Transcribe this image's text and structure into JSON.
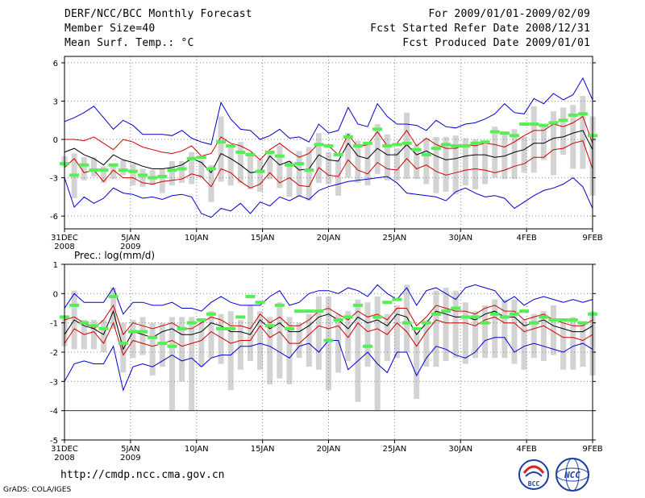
{
  "header": {
    "title": "DERF/NCC/BCC Monthly Forecast",
    "member_size": "Member Size=40",
    "variable": "Mean Surf. Temp.: °C",
    "period": "For 2009/01/01-2009/02/09",
    "fcst_started": "Fcst Started Refer Date 2008/12/31",
    "fcst_produced": "Fcst Produced Date 2009/01/01"
  },
  "footer": {
    "url": "http://cmdp.ncc.cma.gov.cn",
    "credit": "GrADS: COLA/IGES",
    "logo_bcc_text": "BCC",
    "logo_ncc_text": "NCC"
  },
  "colors": {
    "envelope_max_min": "#0000cc",
    "percentile_band": "#cc0000",
    "ensemble_mean": "#000000",
    "observed_marker": "#55ee55",
    "spread_box": "#d3d3d3",
    "grid": "#888888"
  },
  "x_tick_labels": [
    "31DEC\n2008",
    "5JAN\n2009",
    "10JAN",
    "15JAN",
    "20JAN",
    "25JAN",
    "30JAN",
    "4FEB",
    "9FEB"
  ],
  "chart_data": [
    {
      "type": "line",
      "title": "Mean Surf. Temp.: °C",
      "ylim": [
        -7,
        6.5
      ],
      "yticks": [
        -6,
        -3,
        0,
        3,
        6
      ],
      "grid": true,
      "day_range": [
        0,
        40
      ],
      "series": [
        {
          "name": "max",
          "values": [
            1.4,
            1.7,
            2.1,
            2.6,
            1.7,
            0.8,
            1.5,
            1.1,
            0.4,
            0.4,
            0.4,
            0.3,
            0.7,
            0.1,
            -0.2,
            -0.4,
            2.9,
            1.6,
            0.8,
            0.7,
            0.0,
            0.3,
            0.8,
            0.1,
            0.2,
            -0.2,
            1.2,
            0.5,
            0.7,
            2.5,
            1.2,
            1.0,
            2.8,
            1.8,
            1.2,
            1.2,
            1.1,
            0.7,
            1.5,
            1.0,
            0.9,
            1.2,
            1.3,
            1.6,
            2.0,
            2.8,
            2.1,
            2.0,
            3.2,
            2.8,
            3.6,
            3.1,
            3.5,
            4.8,
            3.1
          ]
        },
        {
          "name": "p75",
          "values": [
            0.0,
            0.0,
            -0.1,
            0.2,
            -0.3,
            -0.8,
            0.0,
            -0.2,
            -0.6,
            -0.8,
            -1.0,
            -1.1,
            -0.9,
            -0.5,
            -1.3,
            -1.1,
            0.2,
            -0.3,
            -0.5,
            -0.9,
            -1.6,
            -0.8,
            -0.3,
            -0.9,
            -1.4,
            -1.1,
            -0.3,
            -0.5,
            -1.2,
            0.4,
            -0.6,
            -0.4,
            0.6,
            -0.5,
            -0.3,
            0.7,
            -0.5,
            0.1,
            -0.4,
            -0.7,
            -0.7,
            -0.4,
            -0.5,
            -0.3,
            -0.4,
            -0.6,
            -0.2,
            0.3,
            0.7,
            0.7,
            1.2,
            1.0,
            1.3,
            1.8,
            -0.3
          ]
        },
        {
          "name": "mean",
          "values": [
            -1.0,
            -0.7,
            -1.2,
            -1.5,
            -2.0,
            -1.2,
            -1.6,
            -1.8,
            -2.1,
            -2.3,
            -2.3,
            -2.2,
            -2.0,
            -1.5,
            -1.8,
            -2.6,
            -1.1,
            -1.5,
            -2.0,
            -2.6,
            -2.5,
            -1.3,
            -2.0,
            -1.7,
            -2.4,
            -2.3,
            -1.2,
            -1.6,
            -1.7,
            -0.3,
            -1.3,
            -1.5,
            -0.7,
            -1.2,
            -1.2,
            -0.4,
            -1.2,
            -0.9,
            -1.3,
            -1.6,
            -1.5,
            -1.3,
            -1.2,
            -1.2,
            -1.4,
            -1.3,
            -1.0,
            -0.8,
            -0.3,
            -0.3,
            0.1,
            0.2,
            0.5,
            0.7,
            -0.8
          ]
        },
        {
          "name": "p25",
          "values": [
            -2.2,
            -1.5,
            -2.6,
            -2.4,
            -3.3,
            -2.4,
            -3.0,
            -3.0,
            -3.4,
            -3.5,
            -3.3,
            -3.2,
            -3.1,
            -2.7,
            -2.9,
            -3.7,
            -2.3,
            -2.6,
            -3.3,
            -3.8,
            -3.5,
            -2.6,
            -3.4,
            -3.0,
            -3.6,
            -3.7,
            -2.2,
            -2.8,
            -2.9,
            -1.6,
            -2.4,
            -2.7,
            -1.8,
            -2.3,
            -2.4,
            -1.5,
            -2.3,
            -2.0,
            -2.5,
            -2.8,
            -2.6,
            -2.4,
            -2.3,
            -2.4,
            -2.6,
            -2.4,
            -2.1,
            -1.9,
            -1.4,
            -1.4,
            -0.8,
            -0.7,
            -0.3,
            -0.1,
            -2.3
          ]
        },
        {
          "name": "min",
          "values": [
            -3.0,
            -5.3,
            -4.5,
            -5.0,
            -4.6,
            -3.8,
            -4.2,
            -4.3,
            -4.6,
            -4.5,
            -4.7,
            -4.4,
            -4.3,
            -4.5,
            -5.8,
            -6.1,
            -5.4,
            -5.6,
            -5.0,
            -5.8,
            -4.9,
            -5.2,
            -4.5,
            -4.8,
            -4.4,
            -4.7,
            -4.0,
            -3.7,
            -3.5,
            -3.3,
            -3.2,
            -3.1,
            -3.0,
            -2.9,
            -3.4,
            -4.2,
            -4.3,
            -4.4,
            -4.5,
            -4.8,
            -4.1,
            -3.8,
            -4.2,
            -4.5,
            -4.4,
            -4.6,
            -5.4,
            -4.9,
            -4.4,
            -4.0,
            -3.8,
            -3.5,
            -3.0,
            -3.7,
            -5.4
          ]
        },
        {
          "name": "box_top",
          "values": [
            -1.3,
            -1.1,
            -1.4,
            -1.4,
            -2.1,
            -2.1,
            -1.6,
            -1.9,
            -2.3,
            -2.4,
            -2.3,
            -1.7,
            -1.7,
            -1.0,
            -1.6,
            -2.0,
            1.8,
            -0.4,
            -0.2,
            -1.0,
            -1.6,
            -1.0,
            -0.5,
            -1.7,
            -0.9,
            -0.6,
            0.5,
            -1.0,
            -1.6,
            0.5,
            -0.1,
            -0.4,
            1.2,
            0.4,
            -0.7,
            2.1,
            -0.4,
            0.1,
            0.2,
            0.2,
            0.3,
            0.1,
            0.0,
            -0.4,
            1.0,
            0.5,
            0.8,
            0.2,
            2.6,
            1.0,
            2.2,
            2.5,
            2.7,
            3.4,
            1.8
          ]
        },
        {
          "name": "box_bottom",
          "values": [
            -2.1,
            -4.6,
            -3.2,
            -2.9,
            -3.4,
            -3.1,
            -2.8,
            -3.6,
            -3.7,
            -3.6,
            -4.2,
            -3.6,
            -3.4,
            -3.5,
            -3.0,
            -4.9,
            -3.3,
            -3.6,
            -3.4,
            -3.9,
            -4.1,
            -3.1,
            -3.8,
            -4.5,
            -4.5,
            -4.8,
            -3.4,
            -3.5,
            -4.4,
            -3.0,
            -3.4,
            -3.6,
            -2.7,
            -3.2,
            -3.2,
            -3.1,
            -3.1,
            -3.5,
            -4.2,
            -4.1,
            -4.3,
            -3.6,
            -3.9,
            -3.5,
            -3.0,
            -3.1,
            -3.1,
            -2.6,
            -2.6,
            -1.6,
            -2.8,
            -1.2,
            -2.3,
            -2.3,
            -4.4
          ]
        },
        {
          "name": "observed",
          "values": [
            -1.9,
            -2.8,
            -2.0,
            -2.4,
            -2.4,
            -2.0,
            -2.4,
            -2.5,
            -2.8,
            -3.0,
            -2.9,
            -2.4,
            -2.3,
            -1.5,
            -1.4,
            -2.3,
            -0.2,
            -0.5,
            -1.0,
            -1.2,
            -2.5,
            -1.0,
            -1.3,
            -2.0,
            -1.9,
            -2.4,
            -0.4,
            -0.5,
            -1.2,
            0.2,
            -0.5,
            -0.3,
            0.8,
            -0.5,
            -0.4,
            -0.3,
            -0.8,
            -1.2,
            -0.7,
            -0.4,
            -0.5,
            -0.5,
            -0.3,
            -0.2,
            0.6,
            0.5,
            0.3,
            1.2,
            1.2,
            1.1,
            1.3,
            1.5,
            1.9,
            2.0,
            0.3
          ]
        }
      ]
    },
    {
      "type": "line",
      "title": "Prec.: log(mm/d)",
      "ylim": [
        -5,
        1
      ],
      "yticks": [
        -5,
        -4,
        -3,
        -2,
        -1,
        0,
        1
      ],
      "grid": true,
      "day_range": [
        0,
        40
      ],
      "series": [
        {
          "name": "max",
          "values": [
            -0.5,
            0.0,
            -0.3,
            -0.3,
            -0.3,
            0.2,
            -0.7,
            -0.3,
            -0.3,
            -0.4,
            -0.4,
            -0.3,
            -0.5,
            -0.5,
            -0.6,
            -0.3,
            -0.1,
            -0.3,
            -0.4,
            -0.4,
            -0.4,
            -0.1,
            0.1,
            -0.4,
            -0.3,
            0.0,
            0.1,
            0.1,
            0.0,
            0.2,
            0.1,
            -0.1,
            0.3,
            0.0,
            -0.2,
            0.2,
            -0.4,
            0.1,
            0.2,
            0.0,
            -0.2,
            0.2,
            0.3,
            0.2,
            0.1,
            -0.3,
            -0.1,
            -0.4,
            -0.2,
            -0.1,
            -0.2,
            -0.3,
            -0.2,
            -0.3,
            -0.2
          ]
        },
        {
          "name": "p75",
          "values": [
            -0.9,
            -0.8,
            -1.0,
            -1.2,
            -0.9,
            -0.4,
            -1.4,
            -1.0,
            -1.1,
            -1.2,
            -1.1,
            -1.0,
            -1.2,
            -1.2,
            -1.0,
            -0.8,
            -0.9,
            -1.1,
            -1.1,
            -1.2,
            -0.7,
            -1.0,
            -0.8,
            -1.1,
            -1.1,
            -0.9,
            -0.6,
            -0.5,
            -0.7,
            -0.9,
            -0.6,
            -0.8,
            -0.7,
            -0.9,
            -0.5,
            -0.5,
            -1.1,
            -0.8,
            -0.4,
            -0.5,
            -0.6,
            -0.6,
            -0.7,
            -0.5,
            -0.4,
            -0.6,
            -0.6,
            -0.9,
            -0.8,
            -0.7,
            -0.9,
            -1.0,
            -1.1,
            -1.1,
            -0.9
          ]
        },
        {
          "name": "mean",
          "values": [
            -1.4,
            -0.9,
            -1.1,
            -1.2,
            -1.4,
            -0.6,
            -1.9,
            -1.3,
            -1.4,
            -1.5,
            -1.3,
            -1.2,
            -1.4,
            -1.4,
            -1.3,
            -1.0,
            -1.1,
            -1.3,
            -1.3,
            -1.4,
            -0.9,
            -1.2,
            -1.0,
            -1.3,
            -1.3,
            -1.1,
            -0.8,
            -0.7,
            -0.9,
            -1.2,
            -0.8,
            -1.0,
            -0.9,
            -1.1,
            -0.7,
            -0.8,
            -1.4,
            -1.0,
            -0.6,
            -0.7,
            -0.8,
            -0.8,
            -0.9,
            -0.7,
            -0.6,
            -0.8,
            -0.8,
            -1.1,
            -1.0,
            -0.9,
            -1.1,
            -1.2,
            -1.3,
            -1.3,
            -1.1
          ]
        },
        {
          "name": "p25",
          "values": [
            -1.7,
            -1.2,
            -1.4,
            -1.3,
            -1.7,
            -1.0,
            -2.1,
            -1.6,
            -1.7,
            -1.8,
            -1.7,
            -1.6,
            -1.8,
            -1.7,
            -1.6,
            -1.3,
            -1.5,
            -1.7,
            -1.6,
            -1.6,
            -1.1,
            -1.5,
            -1.3,
            -1.7,
            -1.7,
            -1.4,
            -1.1,
            -1.2,
            -1.1,
            -1.5,
            -1.0,
            -1.3,
            -1.2,
            -1.4,
            -1.0,
            -1.3,
            -1.8,
            -1.3,
            -0.9,
            -1.0,
            -1.0,
            -1.0,
            -1.1,
            -0.9,
            -0.8,
            -1.0,
            -1.0,
            -1.3,
            -1.2,
            -1.1,
            -1.3,
            -1.5,
            -1.5,
            -1.6,
            -1.4
          ]
        },
        {
          "name": "min",
          "values": [
            -3.0,
            -2.4,
            -2.3,
            -2.4,
            -2.4,
            -1.8,
            -3.3,
            -2.5,
            -2.4,
            -2.5,
            -2.3,
            -2.1,
            -2.3,
            -2.2,
            -2.5,
            -2.2,
            -2.1,
            -2.1,
            -1.8,
            -1.8,
            -1.7,
            -1.8,
            -2.0,
            -2.2,
            -1.8,
            -1.7,
            -2.0,
            -1.6,
            -1.6,
            -2.6,
            -2.3,
            -2.0,
            -2.4,
            -2.7,
            -2.0,
            -2.0,
            -2.8,
            -2.2,
            -1.8,
            -1.9,
            -2.1,
            -2.2,
            -2.0,
            -1.6,
            -1.5,
            -1.5,
            -2.0,
            -1.8,
            -1.7,
            -1.8,
            -1.9,
            -2.0,
            -1.8,
            -1.7,
            -1.9
          ]
        },
        {
          "name": "box_top",
          "values": [
            -0.8,
            0.1,
            -0.9,
            -0.9,
            -0.9,
            0.2,
            -1.0,
            -0.9,
            -0.8,
            -1.0,
            -1.0,
            -0.8,
            -0.8,
            -0.8,
            -0.9,
            -0.6,
            -0.7,
            -0.6,
            -0.9,
            -0.4,
            -0.6,
            -0.8,
            -0.3,
            -0.8,
            -1.0,
            -0.7,
            -0.1,
            -0.1,
            -0.7,
            -0.6,
            -0.2,
            -0.3,
            -0.1,
            -0.7,
            -0.4,
            0.3,
            -1.3,
            -0.9,
            0.1,
            0.2,
            0.1,
            -0.3,
            -0.6,
            -0.4,
            -0.2,
            -0.2,
            -0.2,
            -0.9,
            -0.7,
            -0.6,
            -0.4,
            -1.0,
            -0.8,
            -1.0,
            -0.6
          ]
        },
        {
          "name": "box_bottom",
          "values": [
            -1.8,
            -1.9,
            -1.9,
            -1.9,
            -2.0,
            -1.2,
            -2.7,
            -2.2,
            -2.1,
            -2.8,
            -2.5,
            -4.0,
            -3.0,
            -4.0,
            -2.5,
            -2.2,
            -2.4,
            -3.3,
            -2.6,
            -2.3,
            -2.6,
            -3.1,
            -2.9,
            -3.1,
            -2.2,
            -2.5,
            -2.6,
            -3.3,
            -2.7,
            -2.3,
            -3.7,
            -2.5,
            -4.0,
            -2.3,
            -2.2,
            -2.0,
            -3.6,
            -2.5,
            -2.5,
            -2.3,
            -2.2,
            -2.4,
            -2.2,
            -2.2,
            -2.2,
            -2.2,
            -2.4,
            -2.6,
            -2.2,
            -2.3,
            -2.1,
            -2.6,
            -2.6,
            -2.5,
            -2.8
          ]
        },
        {
          "name": "observed",
          "values": [
            -0.8,
            -0.4,
            -1.0,
            -1.1,
            -1.2,
            -0.1,
            -1.7,
            -1.3,
            -1.3,
            -1.5,
            -1.7,
            -1.8,
            -1.2,
            -1.0,
            -0.9,
            -0.7,
            -1.2,
            -1.2,
            -0.8,
            -0.1,
            -0.3,
            -1.1,
            -0.4,
            -1.2,
            -0.6,
            -0.6,
            -0.6,
            -1.6,
            -0.9,
            -0.8,
            -0.4,
            -1.8,
            -0.8,
            -0.3,
            -0.2,
            -1.0,
            -1.2,
            -1.0,
            -0.7,
            -0.6,
            -0.5,
            -0.8,
            -0.8,
            -1.0,
            -0.7,
            -0.8,
            -0.7,
            -0.6,
            -1.0,
            -0.8,
            -0.9,
            -0.9,
            -0.9,
            -1.0,
            -0.7
          ]
        },
        {
          "name": "threshold",
          "values": [
            -4,
            -4
          ]
        }
      ]
    }
  ]
}
